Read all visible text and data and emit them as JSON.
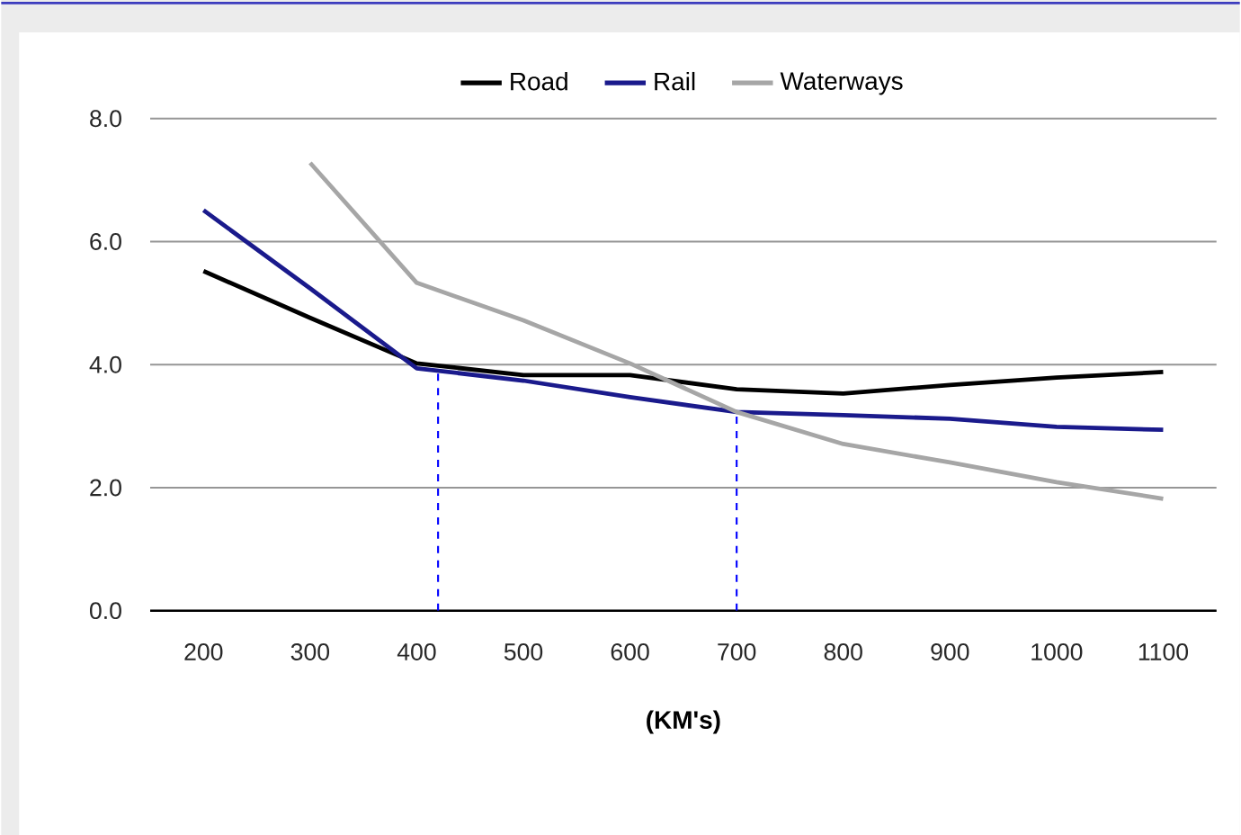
{
  "chart_data": {
    "type": "line",
    "xlabel": "(KM's)",
    "x": [
      200,
      300,
      400,
      500,
      600,
      700,
      800,
      900,
      1000,
      1100
    ],
    "xlim": [
      150,
      1150
    ],
    "xticks": [
      200,
      300,
      400,
      500,
      600,
      700,
      800,
      900,
      1000,
      1100
    ],
    "ylim": [
      0,
      8
    ],
    "yticks": [
      {
        "value": 0,
        "label": "0.0"
      },
      {
        "value": 2,
        "label": "2.0"
      },
      {
        "value": 4,
        "label": "4.0"
      },
      {
        "value": 6,
        "label": "6.0"
      },
      {
        "value": 8,
        "label": "8.0"
      }
    ],
    "series": [
      {
        "name": "Road",
        "color": "#000000",
        "values": [
          5.52,
          4.76,
          4.02,
          3.83,
          3.83,
          3.6,
          3.53,
          3.67,
          3.79,
          3.88
        ]
      },
      {
        "name": "Rail",
        "color": "#1a1a8c",
        "values": [
          6.51,
          5.24,
          3.94,
          3.74,
          3.47,
          3.23,
          3.18,
          3.12,
          2.99,
          2.94
        ]
      },
      {
        "name": "Waterways",
        "color": "#a6a6a6",
        "values": [
          null,
          7.28,
          5.33,
          4.72,
          4.02,
          3.23,
          2.71,
          2.41,
          2.09,
          1.82
        ]
      }
    ],
    "ref_lines": [
      {
        "axis": "x",
        "value": 420,
        "color": "#0000ff",
        "line_style": "dashed"
      },
      {
        "axis": "x",
        "value": 700,
        "color": "#0000ff",
        "line_style": "dashed"
      }
    ],
    "grid": "y",
    "legend": "top",
    "marker": "none",
    "line_style": "solid"
  }
}
